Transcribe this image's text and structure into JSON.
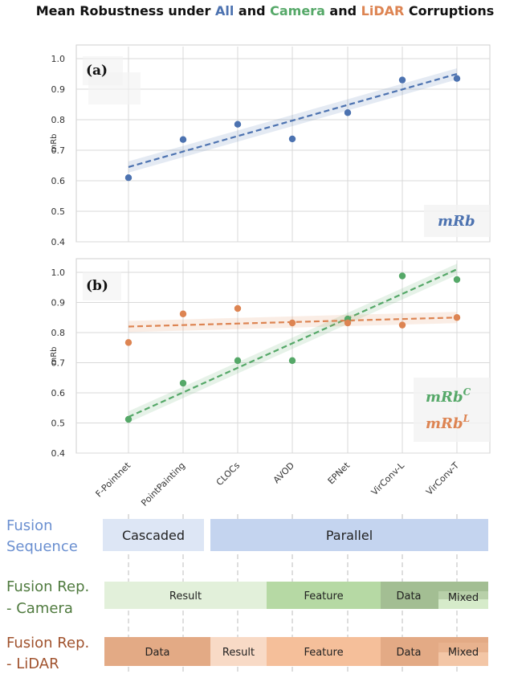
{
  "title": {
    "prefix": "Mean Robustness under ",
    "all": "All",
    "and1": " and ",
    "camera": "Camera",
    "and2": " and ",
    "lidar": "LiDAR",
    "suffix": " Corruptions"
  },
  "colors": {
    "all": "#4c72b0",
    "camera": "#55a868",
    "lidar": "#dd8452",
    "grid": "#d9d9d9",
    "sequence_text": "#6a8fd0",
    "camera_text": "#4f7a3e",
    "lidar_text": "#a0522d"
  },
  "chart_data": [
    {
      "type": "scatter",
      "panel_label": "(a)",
      "ylabel": "mRb",
      "ylim": [
        0.4,
        1.0
      ],
      "yticks": [
        "0.4",
        "0.5",
        "0.6",
        "0.7",
        "0.8",
        "0.9",
        "1.0"
      ],
      "categories": [
        "F-Pointnet",
        "PointPainting",
        "CLOCs",
        "AVOD",
        "EPNet",
        "VirConv-L",
        "VirConv-T"
      ],
      "series": [
        {
          "name": "mRb",
          "values": [
            0.61,
            0.735,
            0.785,
            0.737,
            0.823,
            0.93,
            0.935
          ],
          "trend": [
            0.645,
            0.95
          ]
        }
      ],
      "grid": true,
      "legend_position": "bottom-right"
    },
    {
      "type": "scatter",
      "panel_label": "(b)",
      "ylabel": "mRb",
      "ylim": [
        0.4,
        1.0
      ],
      "yticks": [
        "0.4",
        "0.5",
        "0.6",
        "0.7",
        "0.8",
        "0.9",
        "1.0"
      ],
      "categories": [
        "F-Pointnet",
        "PointPainting",
        "CLOCs",
        "AVOD",
        "EPNet",
        "VirConv-L",
        "VirConv-T"
      ],
      "series": [
        {
          "name": "mRb^C",
          "values": [
            0.512,
            0.632,
            0.707,
            0.707,
            0.845,
            0.988,
            0.976
          ],
          "trend": [
            0.52,
            1.01
          ]
        },
        {
          "name": "mRb^L",
          "values": [
            0.767,
            0.862,
            0.88,
            0.832,
            0.832,
            0.825,
            0.85
          ],
          "trend": [
            0.82,
            0.85
          ]
        }
      ],
      "grid": true,
      "legend_position": "bottom-right"
    }
  ],
  "legend": {
    "a": {
      "base": "mRb",
      "sup": ""
    },
    "b_camera": {
      "base": "mRb",
      "sup": "C"
    },
    "b_lidar": {
      "base": "mRb",
      "sup": "L"
    }
  },
  "taxonomy": {
    "sequence": {
      "label_line1": "Fusion",
      "label_line2": "Sequence",
      "segments": [
        {
          "text": "Cascaded",
          "color": "#dde6f5"
        },
        {
          "text": "Parallel",
          "color": "#c4d4ef"
        }
      ]
    },
    "camera": {
      "label_line1": "Fusion Rep.",
      "label_line2": "- Camera",
      "segments": [
        {
          "text": "Result",
          "color": "#e2f0da"
        },
        {
          "text": "Feature",
          "color": "#b6d9a4"
        },
        {
          "text": "Data",
          "color": "#a3be93"
        },
        {
          "text": "Mixed",
          "color": "#d6ebca"
        }
      ]
    },
    "lidar": {
      "label_line1": "Fusion Rep.",
      "label_line2": "- LiDAR",
      "segments": [
        {
          "text": "Data",
          "color": "#e3aa85"
        },
        {
          "text": "Result",
          "color": "#f8dac6"
        },
        {
          "text": "Feature",
          "color": "#f5bf9a"
        },
        {
          "text": "Data",
          "color": "#e3aa85"
        },
        {
          "text": "Mixed",
          "color": "#f3c6a6"
        }
      ]
    }
  }
}
